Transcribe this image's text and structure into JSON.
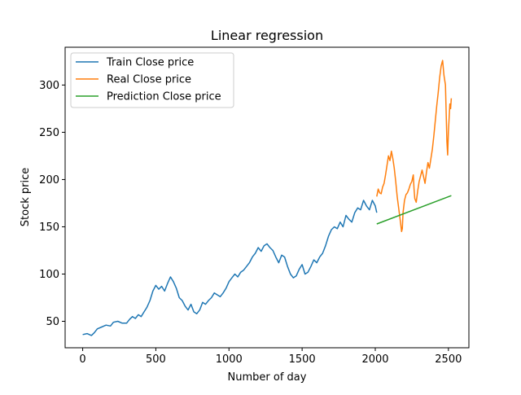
{
  "chart_data": {
    "type": "line",
    "title": "Linear regression",
    "xlabel": "Number of day",
    "ylabel": "Stock price",
    "xlim": [
      -120,
      2640
    ],
    "ylim": [
      22,
      340
    ],
    "xticks": [
      0,
      500,
      1000,
      1500,
      2000,
      2500
    ],
    "yticks": [
      50,
      100,
      150,
      200,
      250,
      300
    ],
    "grid": false,
    "legend_position": "top-left",
    "series": [
      {
        "name": "Train Close price",
        "color": "#1f77b4",
        "points": [
          [
            0,
            36
          ],
          [
            30,
            37
          ],
          [
            60,
            35
          ],
          [
            80,
            38
          ],
          [
            100,
            42
          ],
          [
            130,
            44
          ],
          [
            160,
            46
          ],
          [
            190,
            45
          ],
          [
            210,
            49
          ],
          [
            240,
            50
          ],
          [
            270,
            48
          ],
          [
            300,
            48
          ],
          [
            320,
            52
          ],
          [
            340,
            55
          ],
          [
            360,
            53
          ],
          [
            380,
            57
          ],
          [
            400,
            55
          ],
          [
            420,
            60
          ],
          [
            440,
            65
          ],
          [
            460,
            72
          ],
          [
            480,
            82
          ],
          [
            500,
            88
          ],
          [
            520,
            84
          ],
          [
            540,
            87
          ],
          [
            560,
            82
          ],
          [
            580,
            90
          ],
          [
            600,
            97
          ],
          [
            620,
            92
          ],
          [
            640,
            85
          ],
          [
            660,
            75
          ],
          [
            680,
            72
          ],
          [
            700,
            66
          ],
          [
            720,
            62
          ],
          [
            740,
            68
          ],
          [
            760,
            60
          ],
          [
            780,
            58
          ],
          [
            800,
            62
          ],
          [
            820,
            70
          ],
          [
            840,
            68
          ],
          [
            860,
            72
          ],
          [
            880,
            75
          ],
          [
            900,
            80
          ],
          [
            920,
            78
          ],
          [
            940,
            76
          ],
          [
            960,
            80
          ],
          [
            980,
            85
          ],
          [
            1000,
            92
          ],
          [
            1020,
            96
          ],
          [
            1040,
            100
          ],
          [
            1060,
            97
          ],
          [
            1080,
            102
          ],
          [
            1100,
            104
          ],
          [
            1120,
            108
          ],
          [
            1140,
            112
          ],
          [
            1160,
            118
          ],
          [
            1180,
            122
          ],
          [
            1200,
            128
          ],
          [
            1220,
            124
          ],
          [
            1240,
            130
          ],
          [
            1260,
            132
          ],
          [
            1280,
            128
          ],
          [
            1300,
            125
          ],
          [
            1320,
            118
          ],
          [
            1340,
            112
          ],
          [
            1360,
            120
          ],
          [
            1380,
            118
          ],
          [
            1400,
            108
          ],
          [
            1420,
            100
          ],
          [
            1440,
            96
          ],
          [
            1460,
            98
          ],
          [
            1480,
            105
          ],
          [
            1500,
            110
          ],
          [
            1520,
            100
          ],
          [
            1540,
            102
          ],
          [
            1560,
            108
          ],
          [
            1580,
            115
          ],
          [
            1600,
            112
          ],
          [
            1620,
            118
          ],
          [
            1640,
            122
          ],
          [
            1660,
            130
          ],
          [
            1680,
            140
          ],
          [
            1700,
            147
          ],
          [
            1720,
            150
          ],
          [
            1740,
            148
          ],
          [
            1760,
            155
          ],
          [
            1780,
            150
          ],
          [
            1800,
            162
          ],
          [
            1820,
            158
          ],
          [
            1840,
            155
          ],
          [
            1860,
            165
          ],
          [
            1880,
            170
          ],
          [
            1900,
            168
          ],
          [
            1920,
            178
          ],
          [
            1940,
            172
          ],
          [
            1960,
            168
          ],
          [
            1980,
            178
          ],
          [
            2000,
            172
          ],
          [
            2010,
            165
          ]
        ]
      },
      {
        "name": "Real Close price",
        "color": "#ff7f0e",
        "points": [
          [
            2010,
            182
          ],
          [
            2020,
            190
          ],
          [
            2030,
            186
          ],
          [
            2040,
            185
          ],
          [
            2050,
            192
          ],
          [
            2060,
            196
          ],
          [
            2070,
            205
          ],
          [
            2080,
            215
          ],
          [
            2090,
            225
          ],
          [
            2100,
            220
          ],
          [
            2110,
            230
          ],
          [
            2120,
            222
          ],
          [
            2130,
            212
          ],
          [
            2140,
            198
          ],
          [
            2150,
            182
          ],
          [
            2160,
            170
          ],
          [
            2170,
            158
          ],
          [
            2180,
            145
          ],
          [
            2185,
            148
          ],
          [
            2190,
            165
          ],
          [
            2200,
            178
          ],
          [
            2210,
            184
          ],
          [
            2220,
            186
          ],
          [
            2230,
            190
          ],
          [
            2240,
            195
          ],
          [
            2250,
            198
          ],
          [
            2260,
            205
          ],
          [
            2265,
            190
          ],
          [
            2270,
            180
          ],
          [
            2280,
            176
          ],
          [
            2290,
            188
          ],
          [
            2300,
            198
          ],
          [
            2310,
            204
          ],
          [
            2320,
            210
          ],
          [
            2330,
            203
          ],
          [
            2340,
            196
          ],
          [
            2350,
            208
          ],
          [
            2360,
            218
          ],
          [
            2370,
            212
          ],
          [
            2380,
            222
          ],
          [
            2390,
            232
          ],
          [
            2400,
            246
          ],
          [
            2410,
            262
          ],
          [
            2420,
            278
          ],
          [
            2430,
            292
          ],
          [
            2440,
            308
          ],
          [
            2450,
            320
          ],
          [
            2460,
            326
          ],
          [
            2470,
            310
          ],
          [
            2480,
            300
          ],
          [
            2490,
            240
          ],
          [
            2495,
            226
          ],
          [
            2500,
            250
          ],
          [
            2505,
            265
          ],
          [
            2510,
            280
          ],
          [
            2515,
            275
          ],
          [
            2520,
            286
          ]
        ]
      },
      {
        "name": "Prediction Close price",
        "color": "#2ca02c",
        "points": [
          [
            2010,
            153
          ],
          [
            2520,
            183
          ]
        ]
      }
    ]
  }
}
